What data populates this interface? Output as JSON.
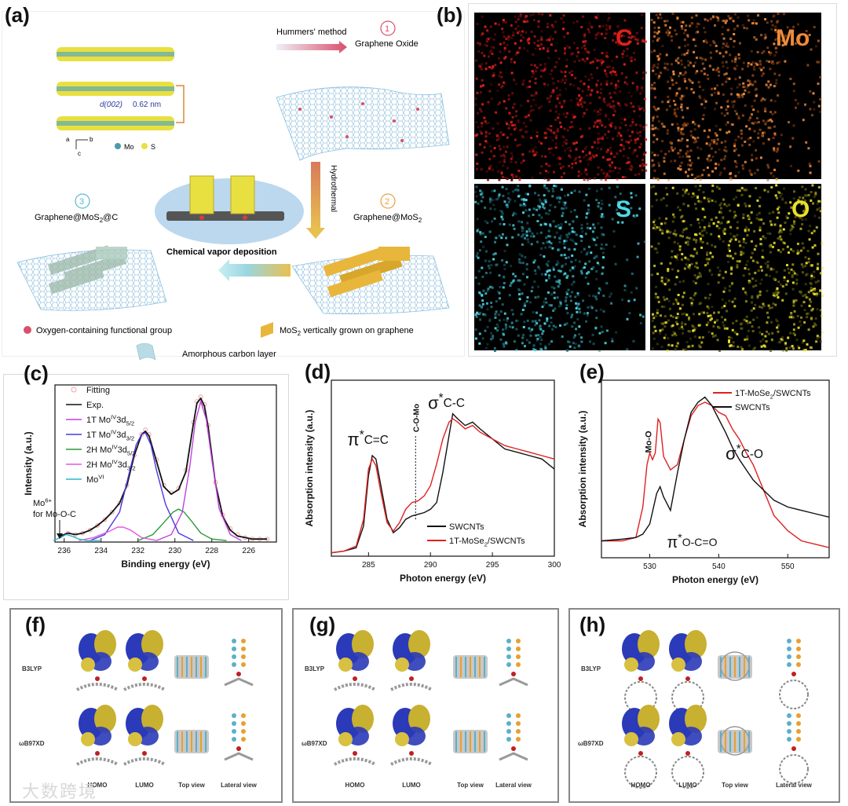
{
  "panels": {
    "a": {
      "label": "(a)",
      "step1_method": "Hummers' method",
      "step1_num": "1",
      "step1_product": "Graphene Oxide",
      "d_spacing_label": "d(002)",
      "d_spacing_value": "0.62 nm",
      "axes_a": "a",
      "axes_b": "b",
      "axes_c": "c",
      "legend_mo": "Mo",
      "legend_s": "S",
      "step2_method": "Hydrothermal",
      "step2_num": "2",
      "step2_product_base": "Graphene@MoS",
      "step2_product_sub": "2",
      "step3_method": "Chemical vapor deposition",
      "step3_num": "3",
      "step3_product_base": "Graphene@MoS",
      "step3_product_sub": "2",
      "step3_product_end": "@C",
      "legend_oxygen": "Oxygen-containing functional group",
      "legend_mos2_base": "MoS",
      "legend_mos2_sub": "2",
      "legend_mos2_end": " vertically grown on graphene",
      "legend_carbon": "Amorphous carbon layer",
      "colors": {
        "oxygen": "#d9506a",
        "mos2": "#e8b63a",
        "graphene": "#7fb6d6",
        "carbon": "#b9dbe6"
      }
    },
    "b": {
      "label": "(b)",
      "maps": [
        {
          "element": "C",
          "color": "#e0201a",
          "bg": "#6e0c0c"
        },
        {
          "element": "Mo",
          "color": "#f08a3a",
          "bg": "#8a3e10"
        },
        {
          "element": "S",
          "color": "#4fd8e8",
          "bg": "#1d6a74"
        },
        {
          "element": "O",
          "color": "#e8e02a",
          "bg": "#5a5a10"
        }
      ]
    },
    "c": {
      "label": "(c)",
      "mo6_label": "Mo",
      "mo6_sup": "6+",
      "mo6_for": "for Mo-O-C"
    },
    "d": {
      "label": "(d)",
      "pi_label": "π",
      "pi_sub": "C=C",
      "sigma_label": "σ",
      "sigma_sub": "C-C",
      "com_label": "C-O-Mo"
    },
    "e": {
      "label": "(e)",
      "moo_label": "Mo-O",
      "pi_label": "π",
      "pi_sub": "O-C=O",
      "sigma_label": "σ",
      "sigma_sub": "C-O"
    },
    "f": {
      "label": "(f)",
      "method1": "B3LYP",
      "method2": "ωB97XD",
      "col1": "HOMO",
      "col2": "LUMO",
      "col3": "Top view",
      "col4": "Lateral view"
    },
    "g": {
      "label": "(g)",
      "method1": "B3LYP",
      "method2": "ωB97XD",
      "col1": "HOMO",
      "col2": "LUMO",
      "col3": "Top view",
      "col4": "Lateral view"
    },
    "h": {
      "label": "(h)",
      "method1": "B3LYP",
      "method2": "ωB97XD",
      "col1": "HOMO",
      "col2": "LUMO",
      "col3": "Top view",
      "col4": "Lateral view"
    }
  },
  "watermark": "大数跨境",
  "chart_data": [
    {
      "type": "line",
      "panel": "c",
      "xlabel": "Binding energy (eV)",
      "ylabel": "Intensity (a.u.)",
      "xlim": [
        236.5,
        224.5
      ],
      "x_reversed": true,
      "xticks": [
        236,
        234,
        232,
        230,
        228,
        226
      ],
      "legend_position": "top-left",
      "series": [
        {
          "name": "Fitting",
          "color": "#f4a0a0",
          "style": "markers",
          "x": [
            236.2,
            235.8,
            235.4,
            235.0,
            234.6,
            234.2,
            233.8,
            233.4,
            233.0,
            232.6,
            232.2,
            231.8,
            231.6,
            231.4,
            231.0,
            230.6,
            230.2,
            229.8,
            229.4,
            229.0,
            228.8,
            228.6,
            228.4,
            228.2,
            227.8,
            227.4,
            227.0,
            226.6,
            226.2,
            225.8,
            225.4,
            225.0
          ],
          "y": [
            0.04,
            0.06,
            0.05,
            0.06,
            0.08,
            0.11,
            0.15,
            0.2,
            0.26,
            0.38,
            0.58,
            0.72,
            0.75,
            0.72,
            0.55,
            0.38,
            0.33,
            0.36,
            0.48,
            0.8,
            0.94,
            0.97,
            0.92,
            0.78,
            0.4,
            0.18,
            0.09,
            0.05,
            0.03,
            0.02,
            0.02,
            0.02
          ]
        },
        {
          "name": "Exp.",
          "color": "#111111",
          "style": "line",
          "x": [
            236.2,
            235.8,
            235.4,
            235.0,
            234.6,
            234.2,
            233.8,
            233.4,
            233.0,
            232.6,
            232.2,
            231.8,
            231.6,
            231.4,
            231.0,
            230.6,
            230.2,
            229.8,
            229.4,
            229.0,
            228.8,
            228.6,
            228.4,
            228.2,
            227.8,
            227.4,
            227.0,
            226.6,
            226.2,
            225.8,
            225.4,
            225.0
          ],
          "y": [
            0.04,
            0.06,
            0.05,
            0.06,
            0.08,
            0.11,
            0.15,
            0.2,
            0.26,
            0.38,
            0.58,
            0.72,
            0.74,
            0.71,
            0.54,
            0.37,
            0.32,
            0.35,
            0.47,
            0.79,
            0.93,
            0.96,
            0.91,
            0.77,
            0.39,
            0.17,
            0.08,
            0.04,
            0.03,
            0.02,
            0.02,
            0.02
          ]
        },
        {
          "name": "1T Mo",
          "sup": "IV",
          "tail": "3d",
          "sub": "5/2",
          "color": "#c040e0",
          "style": "line",
          "x": [
            231.0,
            230.2,
            229.6,
            229.2,
            228.9,
            228.6,
            228.3,
            228.0,
            227.6,
            227.0,
            226.4
          ],
          "y": [
            0.01,
            0.05,
            0.2,
            0.5,
            0.8,
            0.94,
            0.82,
            0.55,
            0.22,
            0.05,
            0.01
          ]
        },
        {
          "name": "1T Mo",
          "sup": "IV",
          "tail": "3d",
          "sub": "3/2",
          "color": "#4a3ae0",
          "style": "line",
          "x": [
            234.6,
            233.8,
            233.0,
            232.5,
            232.1,
            231.8,
            231.6,
            231.3,
            231.0,
            230.5,
            229.8,
            229.0
          ],
          "y": [
            0.01,
            0.05,
            0.2,
            0.45,
            0.65,
            0.72,
            0.73,
            0.65,
            0.48,
            0.25,
            0.06,
            0.01
          ]
        },
        {
          "name": "2H Mo",
          "sup": "IV",
          "tail": "3d",
          "sub": "5/2",
          "color": "#2a9a3a",
          "style": "line",
          "x": [
            232.0,
            231.2,
            230.6,
            230.1,
            229.8,
            229.5,
            229.1,
            228.6,
            228.0,
            227.2
          ],
          "y": [
            0.01,
            0.05,
            0.13,
            0.2,
            0.22,
            0.2,
            0.14,
            0.06,
            0.02,
            0.01
          ]
        },
        {
          "name": "2H Mo",
          "sup": "IV",
          "tail": "3d",
          "sub": "3/2",
          "color": "#e05ae0",
          "style": "line",
          "x": [
            235.2,
            234.4,
            233.6,
            233.1,
            232.8,
            232.4,
            231.8,
            231.0
          ],
          "y": [
            0.01,
            0.03,
            0.07,
            0.1,
            0.1,
            0.08,
            0.03,
            0.01
          ]
        },
        {
          "name": "Mo",
          "sup": "VI",
          "color": "#2ab8c8",
          "style": "line",
          "x": [
            236.6,
            236.2,
            235.9,
            235.6,
            235.2,
            234.8,
            234.0
          ],
          "y": [
            0.01,
            0.03,
            0.05,
            0.04,
            0.02,
            0.01,
            0.01
          ]
        }
      ]
    },
    {
      "type": "line",
      "panel": "d",
      "xlabel": "Photon energy (eV)",
      "ylabel": "Absorption intensity (a.u.)",
      "xlim": [
        282,
        300
      ],
      "xticks": [
        285,
        290,
        295,
        300
      ],
      "legend_position": "bottom-right",
      "series": [
        {
          "name": "SWCNTs",
          "color": "#111111",
          "x": [
            282,
            283,
            284,
            284.6,
            285.0,
            285.3,
            285.6,
            286.0,
            286.5,
            287.0,
            287.5,
            288.0,
            288.5,
            289.0,
            289.5,
            290,
            290.5,
            291,
            291.5,
            291.8,
            292.2,
            292.8,
            293.4,
            294,
            295,
            296,
            297,
            298,
            299,
            300
          ],
          "y": [
            0.02,
            0.03,
            0.05,
            0.18,
            0.48,
            0.6,
            0.58,
            0.42,
            0.22,
            0.14,
            0.17,
            0.22,
            0.24,
            0.25,
            0.26,
            0.28,
            0.32,
            0.5,
            0.72,
            0.85,
            0.82,
            0.78,
            0.8,
            0.76,
            0.7,
            0.64,
            0.62,
            0.6,
            0.58,
            0.52
          ]
        },
        {
          "name": "1T-MoSe",
          "sub": "2",
          "tail": "/SWCNTs",
          "color": "#e02020",
          "x": [
            282,
            283,
            284,
            284.6,
            285.0,
            285.3,
            285.6,
            286.0,
            286.5,
            287.0,
            287.5,
            288.0,
            288.5,
            289.0,
            289.5,
            290,
            290.5,
            291,
            291.5,
            291.8,
            292.2,
            292.8,
            293.4,
            294,
            295,
            296,
            297,
            298,
            299,
            300
          ],
          "y": [
            0.02,
            0.03,
            0.06,
            0.22,
            0.52,
            0.58,
            0.54,
            0.38,
            0.2,
            0.15,
            0.2,
            0.28,
            0.32,
            0.33,
            0.36,
            0.42,
            0.55,
            0.7,
            0.8,
            0.82,
            0.8,
            0.76,
            0.78,
            0.74,
            0.7,
            0.66,
            0.64,
            0.62,
            0.6,
            0.58
          ]
        }
      ]
    },
    {
      "type": "line",
      "panel": "e",
      "xlabel": "Photon energy (eV)",
      "ylabel": "Absorption intensity (a.u.)",
      "xlim": [
        523,
        556
      ],
      "xticks": [
        530,
        540,
        550
      ],
      "legend_position": "top-right",
      "series": [
        {
          "name": "1T-MoSe",
          "sub": "2",
          "tail": "/SWCNTs",
          "color": "#e02020",
          "x": [
            523,
            526,
            528,
            529,
            529.6,
            530.0,
            530.4,
            530.8,
            531.2,
            531.5,
            532.0,
            533.0,
            534.0,
            535,
            536,
            537,
            538,
            539,
            540,
            541,
            542,
            543,
            544,
            545,
            546,
            547,
            548,
            550,
            552,
            554,
            556
          ],
          "y": [
            0.1,
            0.1,
            0.12,
            0.3,
            0.55,
            0.62,
            0.58,
            0.62,
            0.82,
            0.8,
            0.6,
            0.52,
            0.55,
            0.7,
            0.84,
            0.9,
            0.92,
            0.9,
            0.86,
            0.84,
            0.76,
            0.7,
            0.62,
            0.55,
            0.45,
            0.35,
            0.25,
            0.16,
            0.1,
            0.08,
            0.06
          ]
        },
        {
          "name": "SWCNTs",
          "color": "#111111",
          "x": [
            523,
            526,
            528,
            529,
            530,
            531,
            531.5,
            532,
            533,
            534,
            535,
            536,
            537,
            538,
            539,
            540,
            541,
            542,
            543,
            544,
            545,
            546,
            547,
            548,
            550,
            552,
            554,
            556
          ],
          "y": [
            0.1,
            0.11,
            0.12,
            0.14,
            0.2,
            0.38,
            0.42,
            0.36,
            0.28,
            0.5,
            0.7,
            0.86,
            0.92,
            0.95,
            0.9,
            0.82,
            0.74,
            0.65,
            0.58,
            0.52,
            0.46,
            0.42,
            0.38,
            0.34,
            0.3,
            0.28,
            0.26,
            0.24
          ]
        }
      ]
    }
  ]
}
